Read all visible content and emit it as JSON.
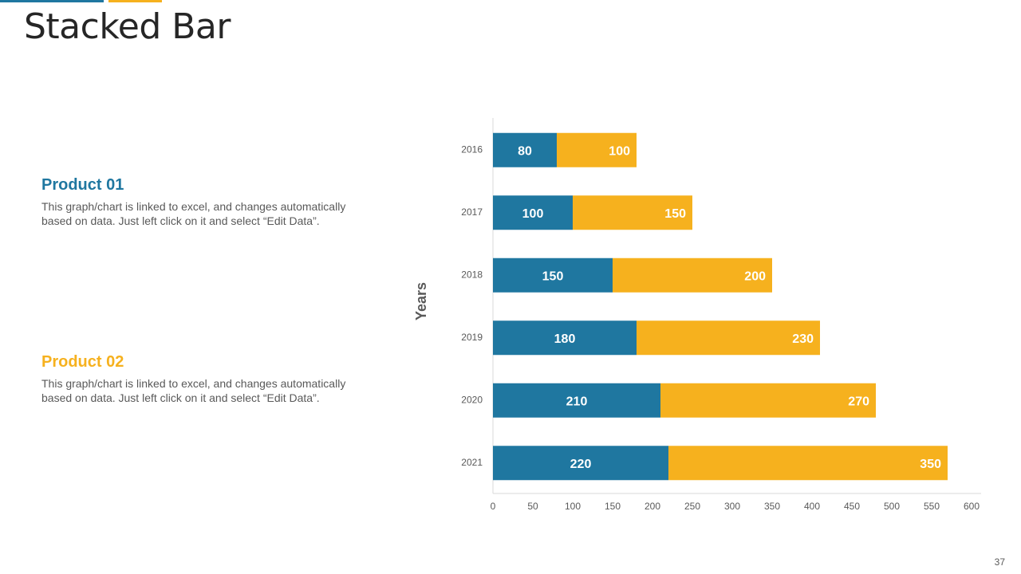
{
  "slide": {
    "title": "Stacked Bar",
    "page_number": "37"
  },
  "products": [
    {
      "heading": "Product 01",
      "description": "This graph/chart is linked to excel, and changes automatically based on data. Just left click on it and select “Edit Data”."
    },
    {
      "heading": "Product 02",
      "description": "This graph/chart is linked to excel, and changes automatically based on data. Just left click on it and select “Edit Data”."
    }
  ],
  "colors": {
    "product1": "#1f77a0",
    "product2": "#f6b11e",
    "axis": "#d9d9d9",
    "tick_text": "#595959",
    "label_text": "#ffffff"
  },
  "chart_data": {
    "type": "bar",
    "orientation": "horizontal",
    "stacked": true,
    "title": "",
    "ylabel": "Years",
    "xlabel": "",
    "categories": [
      "2016",
      "2017",
      "2018",
      "2019",
      "2020",
      "2021"
    ],
    "series": [
      {
        "name": "Product 01",
        "values": [
          80,
          100,
          150,
          180,
          210,
          220
        ]
      },
      {
        "name": "Product 02",
        "values": [
          100,
          150,
          200,
          230,
          270,
          350
        ]
      }
    ],
    "xlim": [
      0,
      600
    ],
    "xticks": [
      0,
      50,
      100,
      150,
      200,
      250,
      300,
      350,
      400,
      450,
      500,
      550,
      600
    ],
    "grid": false,
    "legend": "none"
  }
}
